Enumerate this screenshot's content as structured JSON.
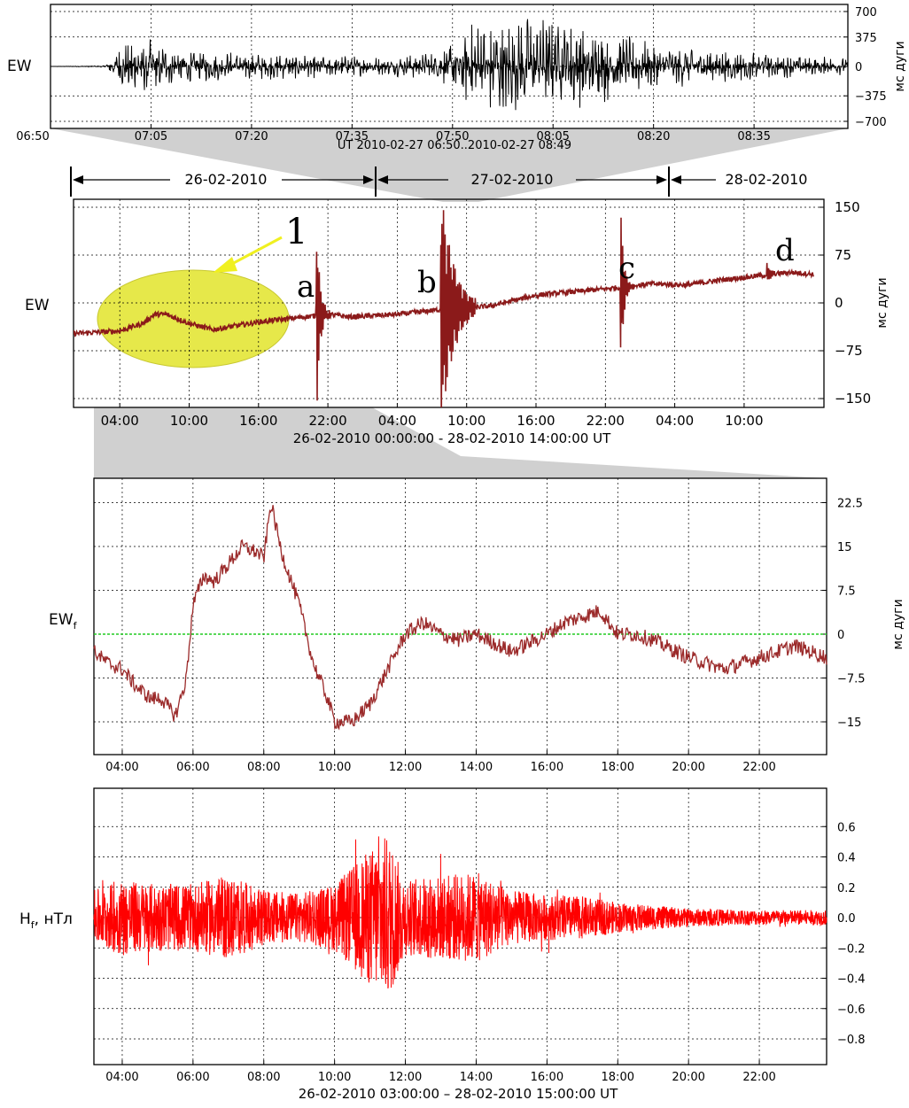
{
  "colors": {
    "trace_black": "#000000",
    "trace_ew": "#8b1a1a",
    "trace_ewf": "#9b2a2a",
    "trace_hf": "#ff0000",
    "zero_line": "#22cc22",
    "ellipse_fill": "#e6e84a",
    "arrow": "#f0f020",
    "connector": "#c8c8c8"
  },
  "chart_data": [
    {
      "type": "line",
      "id": "p1",
      "channel": "EW",
      "ylabel": "мс дуги",
      "xlabel": "UT 2010-02-27 06:50..2010-02-27 08:49",
      "xticks": [
        "06:50",
        "07:05",
        "07:20",
        "07:35",
        "07:50",
        "08:05",
        "08:20",
        "08:35"
      ],
      "yticks": [
        "700",
        "375",
        "0",
        "−375",
        "−700"
      ],
      "ylim": [
        -700,
        700
      ],
      "grid": true,
      "series": [
        {
          "x": [
            0,
            8,
            12,
            20,
            25,
            40,
            50,
            58,
            62,
            70,
            80,
            90,
            100,
            110,
            119
          ],
          "env": [
            0,
            10,
            420,
            230,
            200,
            150,
            120,
            200,
            550,
            700,
            550,
            300,
            220,
            150,
            110
          ]
        }
      ]
    },
    {
      "type": "line",
      "id": "p2",
      "channel": "EW",
      "ylabel": "мс дуги",
      "xlabel": "26-02-2010 00:00:00 - 28-02-2010 14:00:00 UT",
      "xticks": [
        "04:00",
        "10:00",
        "16:00",
        "22:00",
        "04:00",
        "10:00",
        "16:00",
        "22:00",
        "04:00",
        "10:00"
      ],
      "yticks": [
        "150",
        "75",
        "0",
        "−75",
        "−150"
      ],
      "ylim": [
        -160,
        165
      ],
      "grid": true,
      "date_ranges": [
        "26-02-2010",
        "27-02-2010",
        "28-02-2010"
      ],
      "annotations": [
        "1",
        "a",
        "b",
        "c",
        "d"
      ],
      "series": [
        {
          "x": [
            0,
            4,
            6,
            7,
            8,
            10,
            12,
            16,
            20,
            22,
            24,
            28,
            32,
            34,
            36,
            40,
            46,
            50,
            53,
            56,
            62,
            64
          ],
          "y": [
            -48,
            -44,
            -32,
            -18,
            -18,
            -32,
            -42,
            -30,
            -22,
            -18,
            -22,
            -18,
            -10,
            -8,
            -5,
            12,
            22,
            30,
            28,
            36,
            48,
            45
          ]
        }
      ],
      "events": [
        {
          "label": "a",
          "x": 21,
          "amp": 175
        },
        {
          "label": "b",
          "x": 31.8,
          "amp": 185
        },
        {
          "label": "c",
          "x": 47.3,
          "amp": 140
        },
        {
          "label": "d",
          "x": 60,
          "amp": 15
        }
      ]
    },
    {
      "type": "line",
      "id": "p3",
      "channel": "EWf",
      "ylabel": "мс дуги",
      "xticks": [
        "04:00",
        "06:00",
        "08:00",
        "10:00",
        "12:00",
        "14:00",
        "16:00",
        "18:00",
        "20:00",
        "22:00"
      ],
      "yticks": [
        "22.5",
        "15",
        "7.5",
        "0",
        "−7.5",
        "−15"
      ],
      "xlim": [
        3.2,
        23.9
      ],
      "ylim": [
        -17.5,
        26
      ],
      "grid": true,
      "series": [
        {
          "x": [
            3.2,
            3.6,
            4.0,
            4.4,
            4.8,
            5.1,
            5.5,
            5.8,
            6.0,
            6.3,
            6.6,
            7.0,
            7.4,
            7.8,
            8.0,
            8.2,
            8.5,
            9.0,
            9.4,
            9.8,
            10.0,
            10.5,
            11.0,
            11.5,
            12.0,
            12.5,
            13.0,
            13.5,
            14.0,
            15.0,
            16.0,
            16.5,
            17.0,
            17.5,
            18.0,
            18.5,
            19.0,
            20.0,
            21.0,
            22.0,
            23.0,
            23.9
          ],
          "y": [
            -3,
            -5,
            -6,
            -9,
            -11,
            -11,
            -14,
            -8,
            5,
            10,
            9,
            12,
            15,
            14,
            13,
            22.5,
            14,
            5,
            -5,
            -11,
            -15,
            -15,
            -12,
            -6,
            0,
            2,
            0,
            -1,
            0,
            -3,
            0,
            2,
            3,
            4,
            0,
            0,
            -1,
            -4,
            -6,
            -4,
            -2,
            -4
          ]
        }
      ]
    },
    {
      "type": "line",
      "id": "p4",
      "channel": "Hf",
      "ylabel": "Hf, нТл",
      "xlabel": "26-02-2010 03:00:00 – 28-02-2010 15:00:00 UT",
      "xticks": [
        "04:00",
        "06:00",
        "08:00",
        "10:00",
        "12:00",
        "14:00",
        "16:00",
        "18:00",
        "20:00",
        "22:00"
      ],
      "yticks": [
        "0.6",
        "0.4",
        "0.2",
        "0.0",
        "−0.2",
        "−0.4",
        "−0.6",
        "−0.8"
      ],
      "xlim": [
        3.2,
        23.9
      ],
      "ylim": [
        -0.9,
        0.7
      ],
      "grid": true,
      "series": [
        {
          "x": [
            3.2,
            4.0,
            5.0,
            6.0,
            7.0,
            8.0,
            9.0,
            10.0,
            11.0,
            11.5,
            12.0,
            13.0,
            14.0,
            15.0,
            16.0,
            17.0,
            18.0,
            19.0,
            20.0,
            22.0,
            23.9
          ],
          "env": [
            0.18,
            0.25,
            0.22,
            0.22,
            0.28,
            0.18,
            0.16,
            0.22,
            0.45,
            0.55,
            0.25,
            0.28,
            0.3,
            0.18,
            0.15,
            0.14,
            0.1,
            0.08,
            0.06,
            0.05,
            0.05
          ]
        }
      ]
    }
  ]
}
